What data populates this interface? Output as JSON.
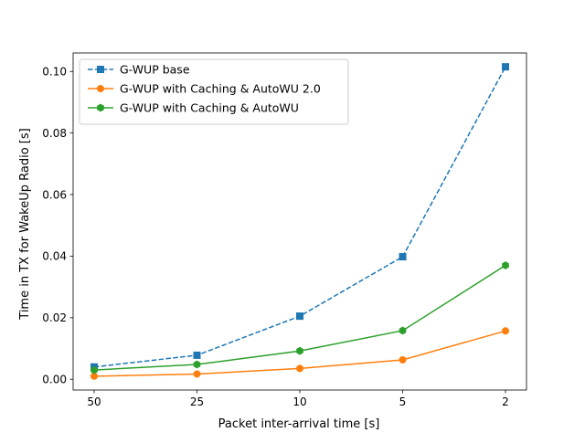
{
  "chart_data": {
    "type": "line",
    "title": "",
    "xlabel": "Packet inter-arrival time [s]",
    "ylabel": "Time in TX for WakeUp Radio [s]",
    "categories": [
      "50",
      "25",
      "10",
      "5",
      "2"
    ],
    "ylim": [
      -0.0035,
      0.106
    ],
    "yticks": [
      "0.00",
      "0.02",
      "0.04",
      "0.06",
      "0.08",
      "0.10"
    ],
    "grid": false,
    "legend_position": "top-left",
    "series": [
      {
        "name": "G-WUP base",
        "values": [
          0.004,
          0.0078,
          0.0205,
          0.0398,
          0.1015
        ],
        "color": "#1f77b4",
        "line_style": "dashed",
        "marker": "square"
      },
      {
        "name": "G-WUP with Caching & AutoWU 2.0",
        "values": [
          0.001,
          0.0017,
          0.0035,
          0.0063,
          0.0157
        ],
        "color": "#ff7f0e",
        "line_style": "solid",
        "marker": "circle"
      },
      {
        "name": "G-WUP with Caching & AutoWU",
        "values": [
          0.003,
          0.0048,
          0.0092,
          0.0158,
          0.037
        ],
        "color": "#2ca02c",
        "line_style": "solid",
        "marker": "hexagon"
      }
    ]
  }
}
